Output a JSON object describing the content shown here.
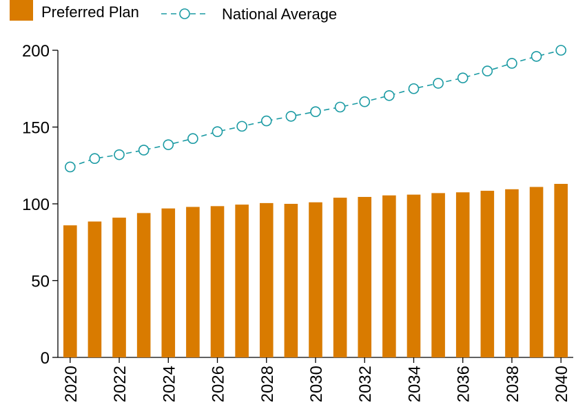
{
  "chart_data": {
    "type": "bar",
    "title": "",
    "xlabel": "",
    "ylabel": "",
    "x": [
      2020,
      2021,
      2022,
      2023,
      2024,
      2025,
      2026,
      2027,
      2028,
      2029,
      2030,
      2031,
      2032,
      2033,
      2034,
      2035,
      2036,
      2037,
      2038,
      2039,
      2040
    ],
    "x_tick_labels": [
      "2020",
      "2022",
      "2024",
      "2026",
      "2028",
      "2030",
      "2032",
      "2034",
      "2036",
      "2038",
      "2040"
    ],
    "y_tick_labels": [
      "0",
      "50",
      "100",
      "150",
      "200"
    ],
    "ylim": [
      0,
      200
    ],
    "grid": false,
    "legend_position": "top-left",
    "series": [
      {
        "name": "Preferred Plan",
        "kind": "bar",
        "color": "#d97b00",
        "values": [
          86,
          88.5,
          91,
          94,
          97,
          98,
          98.5,
          99.5,
          100.5,
          100,
          101,
          104,
          104.5,
          105.5,
          106,
          107,
          107.5,
          108.5,
          109.5,
          111,
          113
        ]
      },
      {
        "name": "National Average",
        "kind": "line",
        "style": "dashed-with-open-circles",
        "color": "#1a9aa3",
        "values": [
          124,
          129.5,
          132,
          135,
          138.5,
          142.5,
          147,
          150.5,
          154,
          157,
          160,
          163,
          166.5,
          170.5,
          175,
          178.5,
          182,
          186.5,
          191.5,
          196,
          200
        ]
      }
    ]
  }
}
